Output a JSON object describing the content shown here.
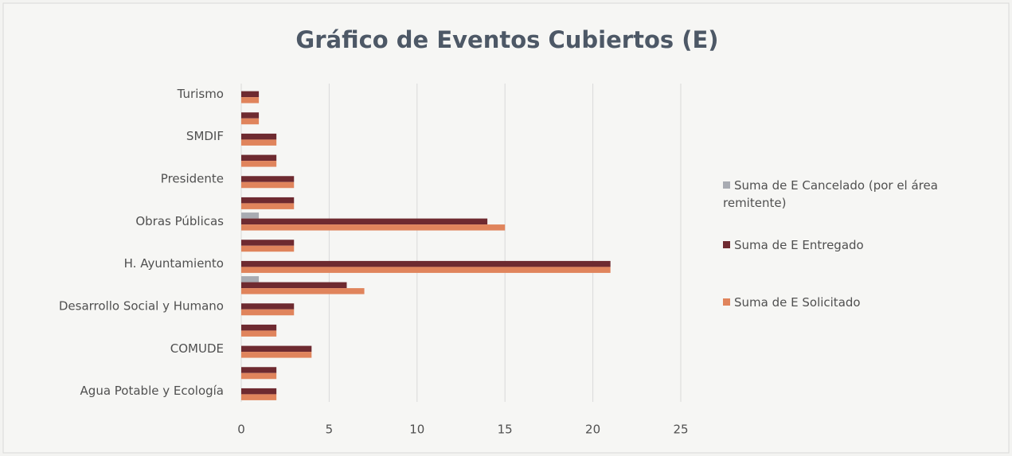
{
  "chart_data": {
    "type": "bar",
    "orientation": "horizontal",
    "title": "Gráfico de Eventos Cubiertos (E)",
    "categories": [
      "Turismo",
      null,
      "SMDIF",
      null,
      "Presidente",
      null,
      "Obras Públicas",
      null,
      "H. Ayuntamiento",
      null,
      "Desarrollo Social y Humano",
      null,
      "COMUDE",
      null,
      "Agua Potable y Ecología"
    ],
    "series": [
      {
        "name": "Suma de E Cancelado (por el área remitente)",
        "color": "#a8abb2",
        "values": [
          0,
          0,
          0,
          0,
          0,
          0,
          1,
          0,
          0,
          1,
          0,
          0,
          0,
          0,
          0
        ]
      },
      {
        "name": "Suma de E Entregado",
        "color": "#6e2a30",
        "values": [
          1,
          1,
          2,
          2,
          3,
          3,
          14,
          3,
          21,
          6,
          3,
          2,
          4,
          2,
          2
        ]
      },
      {
        "name": "Suma de E Solicitado",
        "color": "#e0845c",
        "values": [
          1,
          1,
          2,
          2,
          3,
          3,
          15,
          3,
          21,
          7,
          3,
          2,
          4,
          2,
          2
        ]
      }
    ],
    "xlim": [
      0,
      25
    ],
    "xticks": [
      0,
      5,
      10,
      15,
      20,
      25
    ],
    "grid": true,
    "legend": "right"
  }
}
